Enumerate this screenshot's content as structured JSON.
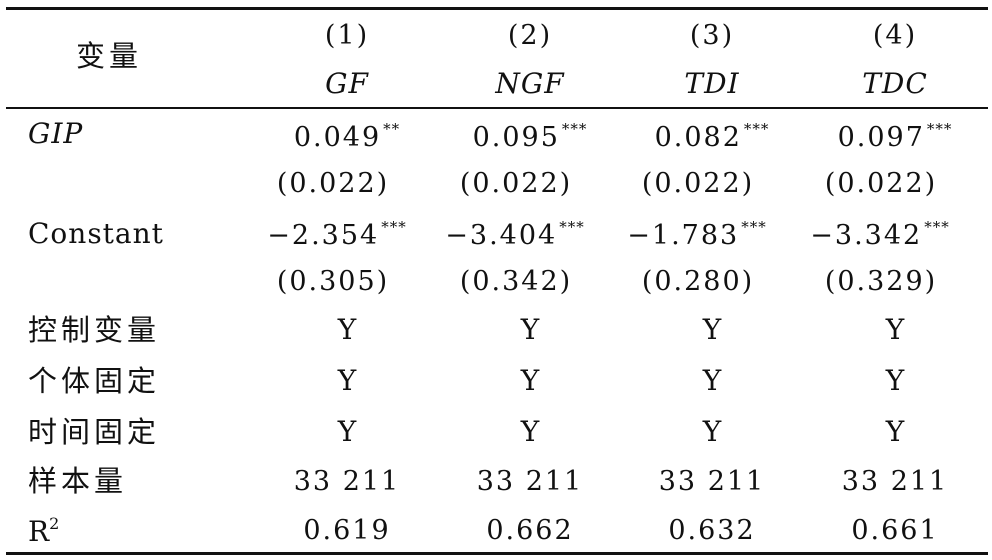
{
  "header": {
    "variable_label": "变量",
    "columns": [
      {
        "number": "(1)",
        "name": "GF"
      },
      {
        "number": "(2)",
        "name": "NGF"
      },
      {
        "number": "(3)",
        "name": "TDI"
      },
      {
        "number": "(4)",
        "name": "TDC"
      }
    ]
  },
  "rows": {
    "gip": {
      "label": "GIP",
      "coef": [
        "0.049",
        "0.095",
        "0.082",
        "0.097"
      ],
      "stars": [
        "**",
        "***",
        "***",
        "***"
      ],
      "se": [
        "(0.022)",
        "(0.022)",
        "(0.022)",
        "(0.022)"
      ]
    },
    "constant": {
      "label": "Constant",
      "coef": [
        "−2.354",
        "−3.404",
        "−1.783",
        "−3.342"
      ],
      "stars": [
        "***",
        "***",
        "***",
        "***"
      ],
      "se": [
        "(0.305)",
        "(0.342)",
        "(0.280)",
        "(0.329)"
      ]
    },
    "controls": {
      "label": "控制变量",
      "values": [
        "Y",
        "Y",
        "Y",
        "Y"
      ]
    },
    "individual_fe": {
      "label": "个体固定",
      "values": [
        "Y",
        "Y",
        "Y",
        "Y"
      ]
    },
    "time_fe": {
      "label": "时间固定",
      "values": [
        "Y",
        "Y",
        "Y",
        "Y"
      ]
    },
    "n_obs": {
      "label": "样本量",
      "values": [
        "33 211",
        "33 211",
        "33 211",
        "33 211"
      ]
    },
    "r2": {
      "label_base": "R",
      "label_sup": "2",
      "values": [
        "0.619",
        "0.662",
        "0.632",
        "0.661"
      ]
    }
  }
}
